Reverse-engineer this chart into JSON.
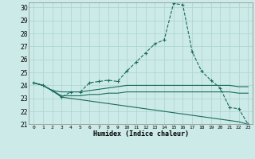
{
  "xlabel": "Humidex (Indice chaleur)",
  "bg_color": "#cceae7",
  "grid_color": "#aad4d0",
  "line_color": "#1a6b5e",
  "xlim": [
    -0.5,
    23.5
  ],
  "ylim": [
    21,
    30.4
  ],
  "yticks": [
    21,
    22,
    23,
    24,
    25,
    26,
    27,
    28,
    29,
    30
  ],
  "xticks": [
    0,
    1,
    2,
    3,
    4,
    5,
    6,
    7,
    8,
    9,
    10,
    11,
    12,
    13,
    14,
    15,
    16,
    17,
    18,
    19,
    20,
    21,
    22,
    23
  ],
  "line1_x": [
    0,
    1,
    2,
    3,
    4,
    5,
    6,
    7,
    8,
    9,
    10,
    11,
    12,
    13,
    14,
    15,
    16,
    17,
    18,
    19,
    20,
    21,
    22,
    23
  ],
  "line1_y": [
    24.2,
    24.0,
    23.6,
    23.1,
    23.5,
    23.5,
    24.2,
    24.3,
    24.4,
    24.3,
    25.1,
    25.8,
    26.5,
    27.2,
    27.5,
    30.3,
    30.2,
    26.6,
    25.1,
    24.4,
    23.8,
    22.3,
    22.2,
    21.0
  ],
  "line2_x": [
    0,
    1,
    2,
    3,
    4,
    5,
    6,
    7,
    8,
    9,
    10,
    11,
    12,
    13,
    14,
    15,
    16,
    17,
    18,
    19,
    20,
    21,
    22,
    23
  ],
  "line2_y": [
    24.2,
    24.0,
    23.6,
    23.5,
    23.5,
    23.5,
    23.6,
    23.7,
    23.8,
    23.9,
    24.0,
    24.0,
    24.0,
    24.0,
    24.0,
    24.0,
    24.0,
    24.0,
    24.0,
    24.0,
    24.0,
    24.0,
    23.9,
    23.9
  ],
  "line3_x": [
    0,
    1,
    2,
    3,
    4,
    5,
    6,
    7,
    8,
    9,
    10,
    11,
    12,
    13,
    14,
    15,
    16,
    17,
    18,
    19,
    20,
    21,
    22,
    23
  ],
  "line3_y": [
    24.2,
    24.0,
    23.6,
    23.2,
    23.2,
    23.2,
    23.3,
    23.3,
    23.4,
    23.4,
    23.5,
    23.5,
    23.5,
    23.5,
    23.5,
    23.5,
    23.5,
    23.5,
    23.5,
    23.5,
    23.5,
    23.5,
    23.4,
    23.4
  ],
  "line4_x": [
    0,
    1,
    2,
    3,
    4,
    5,
    6,
    7,
    8,
    9,
    10,
    11,
    12,
    13,
    14,
    15,
    16,
    17,
    18,
    19,
    20,
    21,
    22,
    23
  ],
  "line4_y": [
    24.2,
    24.0,
    23.6,
    23.1,
    23.0,
    22.9,
    22.8,
    22.7,
    22.6,
    22.5,
    22.4,
    22.3,
    22.2,
    22.1,
    22.0,
    21.9,
    21.8,
    21.7,
    21.6,
    21.5,
    21.4,
    21.3,
    21.2,
    21.0
  ]
}
